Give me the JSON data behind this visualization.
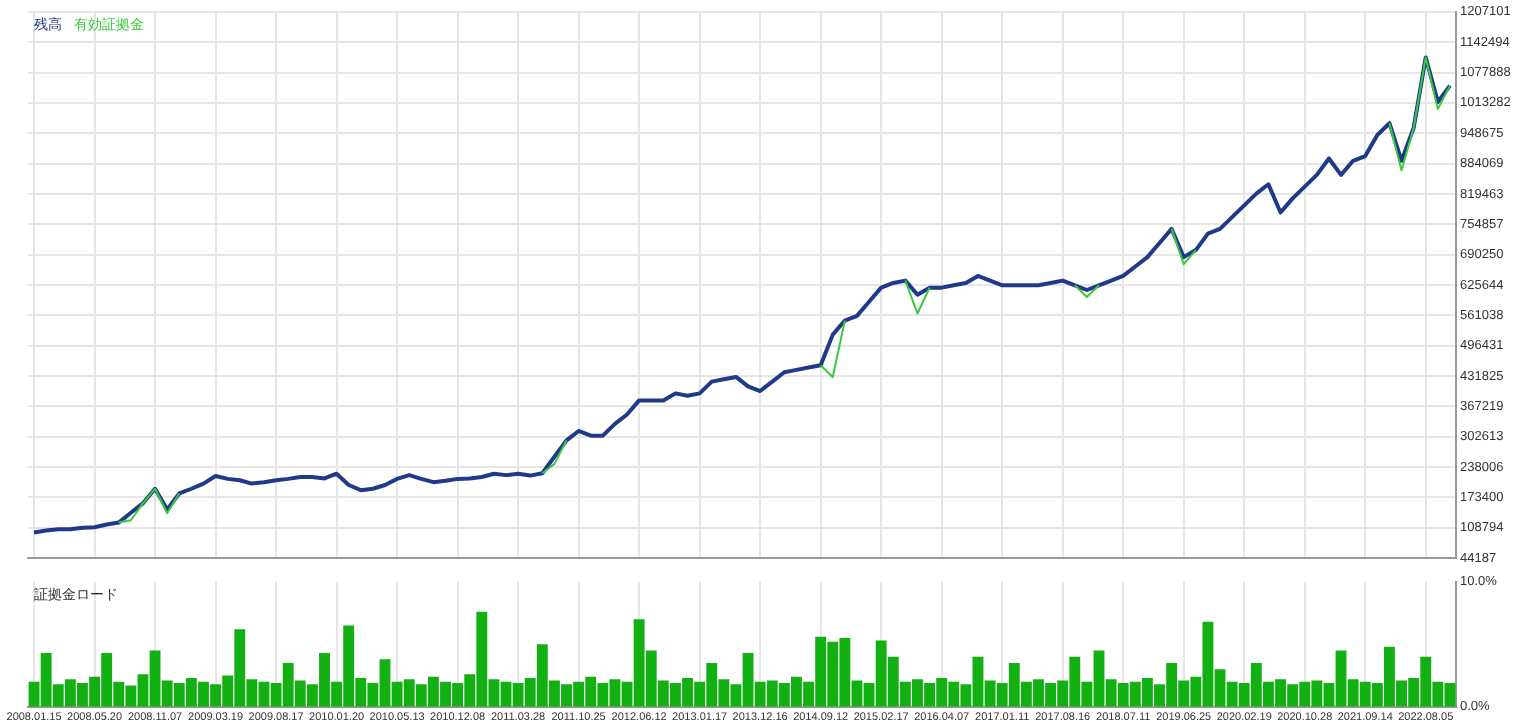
{
  "chart_data": [
    {
      "type": "line",
      "legend": "top left",
      "grid": true,
      "tick_labels": "y",
      "categories": [
        "2008.01.15",
        null,
        null,
        null,
        null,
        "2008.05.20",
        null,
        null,
        null,
        null,
        "2008.11.07",
        null,
        null,
        null,
        null,
        "2009.03.19",
        null,
        null,
        null,
        null,
        "2009.08.17",
        null,
        null,
        null,
        null,
        "2010.01.20",
        null,
        null,
        null,
        null,
        "2010.05.13",
        null,
        null,
        null,
        null,
        "2010.12.08",
        null,
        null,
        null,
        null,
        "2011.03.28",
        null,
        null,
        null,
        null,
        "2011.10.25",
        null,
        null,
        null,
        null,
        "2012.06.12",
        null,
        null,
        null,
        null,
        "2013.01.17",
        null,
        null,
        null,
        null,
        "2013.12.16",
        null,
        null,
        null,
        null,
        "2014.09.12",
        null,
        null,
        null,
        null,
        "2015.02.17",
        null,
        null,
        null,
        null,
        "2016.04.07",
        null,
        null,
        null,
        null,
        "2017.01.11",
        null,
        null,
        null,
        null,
        "2017.08.16",
        null,
        null,
        null,
        null,
        "2018.07.11",
        null,
        null,
        null,
        null,
        "2019.06.25",
        null,
        null,
        null,
        null,
        "2020.02.19",
        null,
        null,
        null,
        null,
        "2020.10.28",
        null,
        null,
        null,
        null,
        "2021.09.14",
        null,
        null,
        null,
        null,
        "2022.08.05",
        null,
        null
      ],
      "series": [
        {
          "name": "残高",
          "color": "#1f3a8a",
          "values": [
            99000,
            103000,
            106000,
            106000,
            109000,
            110000,
            116000,
            120000,
            141000,
            161000,
            192000,
            148000,
            182000,
            192000,
            203000,
            219000,
            213000,
            210000,
            203000,
            206000,
            210000,
            213000,
            217000,
            217000,
            214000,
            224000,
            200000,
            189000,
            192000,
            200000,
            213000,
            221000,
            213000,
            206000,
            209000,
            213000,
            214000,
            217000,
            224000,
            221000,
            224000,
            220000,
            225000,
            260000,
            295000,
            315000,
            305000,
            305000,
            330000,
            350000,
            380000,
            380000,
            380000,
            395000,
            390000,
            395000,
            420000,
            425000,
            430000,
            410000,
            400000,
            420000,
            440000,
            445000,
            450000,
            455000,
            520000,
            550000,
            560000,
            590000,
            620000,
            630000,
            635000,
            605000,
            620000,
            620000,
            625000,
            630000,
            645000,
            635000,
            625000,
            625000,
            625000,
            625000,
            630000,
            635000,
            625000,
            615000,
            625000,
            635000,
            645000,
            665000,
            685000,
            715000,
            745000,
            685000,
            700000,
            735000,
            745000,
            770000,
            795000,
            820000,
            840000,
            780000,
            810000,
            835000,
            860000,
            895000,
            860000,
            890000,
            900000,
            945000,
            970000,
            890000,
            960000,
            1110000,
            1015000,
            1050000
          ]
        },
        {
          "name": "有効証拠金",
          "color": "#3cc83c",
          "values": [
            null,
            null,
            null,
            null,
            null,
            null,
            null,
            120000,
            125000,
            161000,
            192000,
            140000,
            182000,
            null,
            null,
            null,
            null,
            null,
            null,
            null,
            null,
            null,
            null,
            null,
            null,
            null,
            null,
            null,
            null,
            null,
            null,
            null,
            null,
            null,
            null,
            null,
            null,
            null,
            null,
            null,
            null,
            null,
            225000,
            245000,
            295000,
            null,
            null,
            null,
            null,
            null,
            null,
            null,
            null,
            null,
            null,
            null,
            null,
            null,
            null,
            null,
            null,
            null,
            null,
            null,
            null,
            455000,
            430000,
            550000,
            null,
            null,
            null,
            null,
            635000,
            565000,
            620000,
            null,
            null,
            null,
            null,
            null,
            null,
            null,
            null,
            null,
            null,
            null,
            625000,
            600000,
            625000,
            null,
            null,
            null,
            null,
            null,
            745000,
            670000,
            700000,
            null,
            null,
            null,
            null,
            null,
            null,
            null,
            null,
            null,
            null,
            null,
            null,
            null,
            null,
            null,
            970000,
            870000,
            960000,
            1110000,
            1000000,
            1050000
          ]
        }
      ],
      "ylim": [
        44187,
        1207101
      ],
      "yticks": [
        44187,
        108794,
        173400,
        238006,
        302613,
        367219,
        431825,
        496431,
        561038,
        625644,
        690250,
        754857,
        819463,
        884069,
        948675,
        1013282,
        1077888,
        1142494,
        1207101
      ]
    },
    {
      "type": "bar",
      "title": "証拠金ロード",
      "grid": "x",
      "color": "#12b012",
      "categories": [
        "2008.01.15",
        null,
        null,
        null,
        null,
        "2008.05.20",
        null,
        null,
        null,
        null,
        "2008.11.07",
        null,
        null,
        null,
        null,
        "2009.03.19",
        null,
        null,
        null,
        null,
        "2009.08.17",
        null,
        null,
        null,
        null,
        "2010.01.20",
        null,
        null,
        null,
        null,
        "2010.05.13",
        null,
        null,
        null,
        null,
        "2010.12.08",
        null,
        null,
        null,
        null,
        "2011.03.28",
        null,
        null,
        null,
        null,
        "2011.10.25",
        null,
        null,
        null,
        null,
        "2012.06.12",
        null,
        null,
        null,
        null,
        "2013.01.17",
        null,
        null,
        null,
        null,
        "2013.12.16",
        null,
        null,
        null,
        null,
        "2014.09.12",
        null,
        null,
        null,
        null,
        "2015.02.17",
        null,
        null,
        null,
        null,
        "2016.04.07",
        null,
        null,
        null,
        null,
        "2017.01.11",
        null,
        null,
        null,
        null,
        "2017.08.16",
        null,
        null,
        null,
        null,
        "2018.07.11",
        null,
        null,
        null,
        null,
        "2019.06.25",
        null,
        null,
        null,
        null,
        "2020.02.19",
        null,
        null,
        null,
        null,
        "2020.10.28",
        null,
        null,
        null,
        null,
        "2021.09.14",
        null,
        null,
        null,
        null,
        "2022.08.05",
        null,
        null
      ],
      "values": [
        2.0,
        4.3,
        1.8,
        2.2,
        1.9,
        2.4,
        4.3,
        2.0,
        1.7,
        2.6,
        4.5,
        2.1,
        1.9,
        2.3,
        2.0,
        1.8,
        2.5,
        6.2,
        2.2,
        2.0,
        1.9,
        3.5,
        2.1,
        1.8,
        4.3,
        2.0,
        6.5,
        2.3,
        1.9,
        3.8,
        2.0,
        2.2,
        1.8,
        2.4,
        2.0,
        1.9,
        2.6,
        7.6,
        2.2,
        2.0,
        1.9,
        2.3,
        5.0,
        2.1,
        1.8,
        2.0,
        2.4,
        1.9,
        2.2,
        2.0,
        7.0,
        4.5,
        2.1,
        1.9,
        2.3,
        2.0,
        3.5,
        2.2,
        1.8,
        4.3,
        2.0,
        2.1,
        1.9,
        2.4,
        2.0,
        5.6,
        5.2,
        5.5,
        2.1,
        1.9,
        5.3,
        4.0,
        2.0,
        2.2,
        1.9,
        2.3,
        2.0,
        1.8,
        4.0,
        2.1,
        1.9,
        3.5,
        2.0,
        2.2,
        1.9,
        2.1,
        4.0,
        2.0,
        4.5,
        2.2,
        1.9,
        2.0,
        2.3,
        1.8,
        3.5,
        2.1,
        2.4,
        6.8,
        3.0,
        2.0,
        1.9,
        3.5,
        2.0,
        2.2,
        1.8,
        2.0,
        2.1,
        1.9,
        4.5,
        2.2,
        2.0,
        1.9,
        4.8,
        2.1,
        2.3,
        4.0,
        2.0,
        1.9
      ],
      "ylim": [
        0,
        10
      ],
      "yticks": [
        {
          "value": 0,
          "label": "0.0%"
        },
        {
          "value": 10,
          "label": "10.0%"
        }
      ]
    }
  ]
}
